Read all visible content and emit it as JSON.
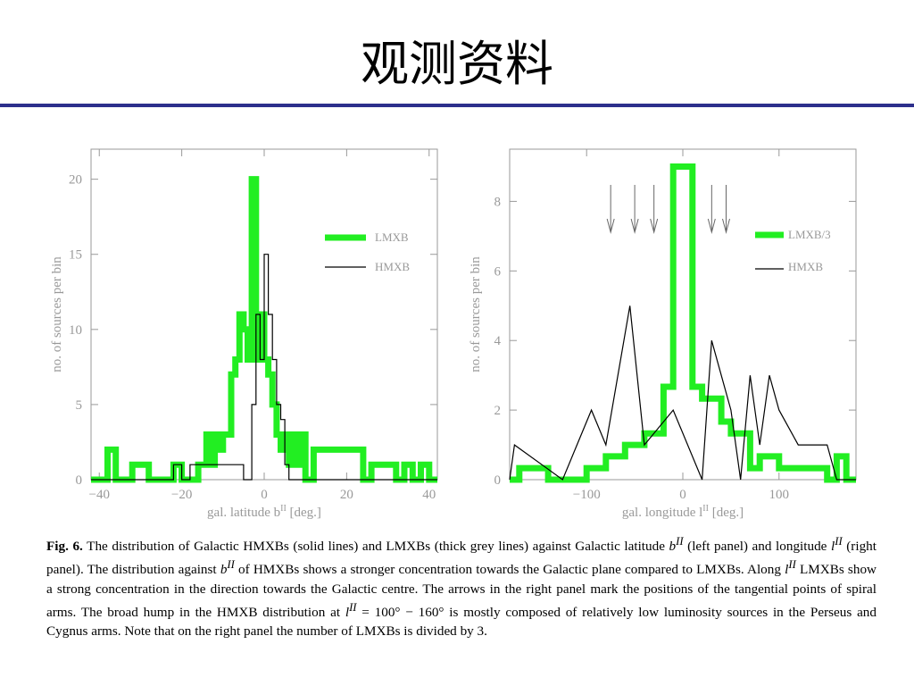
{
  "slide": {
    "title": "观测资料"
  },
  "colors": {
    "lmxb": "#22ee22",
    "hmxb": "#000000",
    "axis": "#999999",
    "title_rule": "#2d2f8c"
  },
  "chart_data": [
    {
      "type": "line",
      "xlabel": "gal. latitude b",
      "xlabel_sup": "II",
      "xlabel_unit": " [deg.]",
      "ylabel": "no. of sources per bin",
      "xlim": [
        -42,
        42
      ],
      "ylim": [
        0,
        22
      ],
      "xticks": [
        -40,
        -20,
        0,
        20,
        40
      ],
      "xtick_labels": [
        "−40",
        "−20",
        "0",
        "20",
        "40"
      ],
      "yticks": [
        0,
        5,
        10,
        15,
        20
      ],
      "legend_position": "right",
      "series": [
        {
          "name": "LMXB",
          "style": "thick",
          "x": [
            -42,
            -38,
            -38,
            -36,
            -36,
            -32,
            -32,
            -28,
            -28,
            -22,
            -22,
            -20,
            -20,
            -16,
            -16,
            -14,
            -14,
            -13,
            -13,
            -12,
            -12,
            -11,
            -11,
            -10,
            -10,
            -8,
            -8,
            -7,
            -7,
            -6,
            -6,
            -5,
            -5,
            -4,
            -4,
            -3,
            -3,
            -2,
            -2,
            -1,
            -1,
            0,
            0,
            1,
            1,
            2,
            2,
            3,
            3,
            4,
            4,
            5,
            5,
            6,
            6,
            7,
            7,
            8,
            8,
            9,
            9,
            10,
            10,
            12,
            12,
            24,
            24,
            26,
            26,
            32,
            32,
            34,
            34,
            36,
            36,
            38,
            38,
            40,
            40,
            42
          ],
          "y": [
            0,
            0,
            2,
            2,
            0,
            0,
            1,
            1,
            0,
            0,
            1,
            1,
            0,
            0,
            1,
            1,
            3,
            3,
            1,
            1,
            3,
            3,
            2,
            2,
            3,
            3,
            7,
            7,
            8,
            8,
            11,
            11,
            10,
            10,
            8,
            8,
            20,
            20,
            8,
            8,
            11,
            11,
            8,
            8,
            7,
            7,
            5,
            5,
            3,
            3,
            2,
            2,
            3,
            3,
            1,
            1,
            3,
            3,
            1,
            1,
            3,
            3,
            0,
            0,
            2,
            2,
            0,
            0,
            1,
            1,
            0,
            0,
            1,
            1,
            0,
            0,
            1,
            1,
            0,
            0
          ]
        },
        {
          "name": "HMXB",
          "style": "thin",
          "x": [
            -42,
            -22,
            -22,
            -20,
            -20,
            -18,
            -18,
            -5,
            -5,
            -3,
            -3,
            -2,
            -2,
            -1,
            -1,
            0,
            0,
            1,
            1,
            2,
            2,
            3,
            3,
            4,
            4,
            5,
            5,
            6,
            6,
            42
          ],
          "y": [
            0,
            0,
            1,
            1,
            0,
            0,
            1,
            1,
            0,
            0,
            5,
            5,
            11,
            11,
            8,
            8,
            15,
            15,
            11,
            11,
            8,
            8,
            5,
            5,
            4,
            4,
            1,
            1,
            0,
            0
          ]
        }
      ]
    },
    {
      "type": "line",
      "xlabel": "gal. longitude l",
      "xlabel_sup": "II",
      "xlabel_unit": " [deg.]",
      "ylabel": "no. of sources per bin",
      "xlim": [
        -180,
        180
      ],
      "ylim": [
        0,
        9.5
      ],
      "xticks": [
        -100,
        0,
        100
      ],
      "xtick_labels": [
        "−100",
        "0",
        "100"
      ],
      "yticks": [
        0,
        2,
        4,
        6,
        8
      ],
      "arrows_x": [
        -75,
        -50,
        -30,
        30,
        45
      ],
      "legend_position": "right",
      "series": [
        {
          "name": "LMXB/3",
          "style": "thick",
          "x": [
            -180,
            -170,
            -170,
            -140,
            -140,
            -100,
            -100,
            -80,
            -80,
            -60,
            -60,
            -40,
            -40,
            -20,
            -20,
            -10,
            -10,
            10,
            10,
            20,
            20,
            40,
            40,
            50,
            50,
            70,
            70,
            80,
            80,
            100,
            100,
            150,
            150,
            160,
            160,
            170,
            170,
            180
          ],
          "y": [
            0,
            0,
            0.33,
            0.33,
            0,
            0,
            0.33,
            0.33,
            0.67,
            0.67,
            1,
            1,
            1.33,
            1.33,
            2.67,
            2.67,
            9,
            9,
            2.67,
            2.67,
            2.33,
            2.33,
            1.67,
            1.67,
            1.33,
            1.33,
            0.33,
            0.33,
            0.67,
            0.67,
            0.33,
            0.33,
            0,
            0,
            0.67,
            0.67,
            0,
            0
          ]
        },
        {
          "name": "HMXB",
          "style": "thin",
          "x": [
            -180,
            -175,
            -175,
            -125,
            -125,
            -110,
            -110,
            -95,
            -95,
            -80,
            -80,
            -55,
            -55,
            -40,
            -40,
            -10,
            -10,
            20,
            20,
            30,
            30,
            40,
            40,
            50,
            50,
            60,
            60,
            70,
            70,
            80,
            80,
            90,
            90,
            100,
            100,
            120,
            120,
            150,
            150,
            160,
            160,
            170,
            170,
            180
          ],
          "y": [
            0,
            1,
            1,
            0,
            0,
            1,
            1,
            2,
            2,
            1,
            1,
            5,
            5,
            1,
            1,
            2,
            2,
            0,
            0,
            4,
            4,
            3,
            3,
            2,
            2,
            0,
            0,
            3,
            3,
            1,
            1,
            3,
            3,
            2,
            2,
            1,
            1,
            1,
            1,
            0,
            0,
            0,
            0,
            0
          ]
        }
      ]
    }
  ],
  "caption": {
    "fig_label": "Fig. 6.",
    "p1": " The distribution of Galactic HMXBs (solid lines) and LMXBs (thick grey lines) against Galactic latitude ",
    "var_b": "b",
    "sup_II": "II",
    "p2": " (left panel) and longitude ",
    "var_l": "l",
    "p3": " (right panel). The distribution against ",
    "p4": " of HMXBs shows a stronger concentration towards the Galactic plane compared to LMXBs. Along ",
    "p5": " LMXBs show a strong concentration in the direction towards the Galactic centre. The arrows in the right panel mark the positions of the tangential points of spiral arms. The broad hump in the HMXB distribution at ",
    "p6": " = 100° − 160° is mostly composed of relatively low luminosity sources in the Perseus and Cygnus arms. Note that on the right panel the number of LMXBs is divided by 3."
  }
}
